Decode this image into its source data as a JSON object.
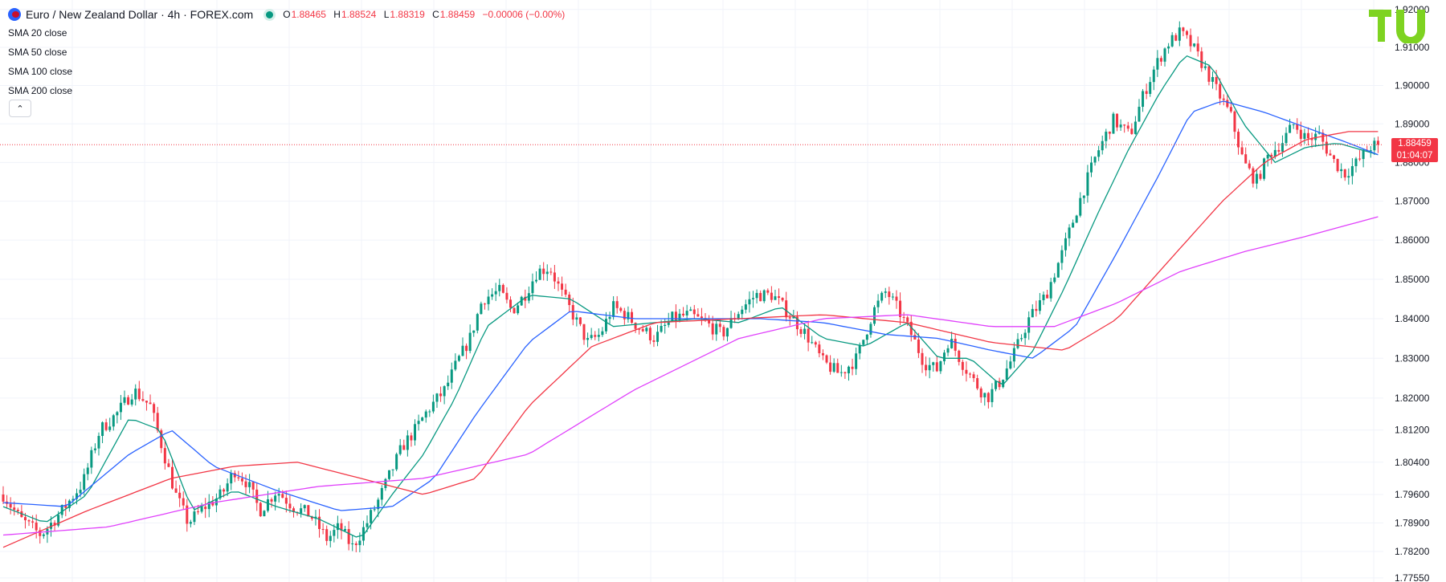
{
  "header": {
    "symbol_title": "Euro / New Zealand Dollar · 4h · FOREX.com",
    "ohlc": [
      {
        "key": "O",
        "value": "1.88465"
      },
      {
        "key": "H",
        "value": "1.88524"
      },
      {
        "key": "L",
        "value": "1.88319"
      },
      {
        "key": "C",
        "value": "1.88459"
      }
    ],
    "change": "−0.00006 (−0.00%)"
  },
  "indicators": [
    {
      "name": "SMA",
      "params": "20 close",
      "color": "#089981"
    },
    {
      "name": "SMA",
      "params": "50 close",
      "color": "#2962ff"
    },
    {
      "name": "SMA",
      "params": "100 close",
      "color": "#f23645"
    },
    {
      "name": "SMA",
      "params": "200 close",
      "color": "#e040fb"
    }
  ],
  "collapse_glyph": "⌃",
  "price_tag": {
    "price": "1.88459",
    "countdown": "01:04:07"
  },
  "colors": {
    "up": "#089981",
    "down": "#f23645",
    "grid": "#f0f3fa",
    "axis_text": "#131722"
  },
  "chart_data": {
    "type": "candlestick",
    "title": "Euro / New Zealand Dollar · 4h · FOREX.com",
    "y_ticks": [
      "1.92000",
      "1.91000",
      "1.90000",
      "1.89000",
      "1.88000",
      "1.87000",
      "1.86000",
      "1.85000",
      "1.84000",
      "1.83000",
      "1.82000",
      "1.81200",
      "1.80400",
      "1.79600",
      "1.78900",
      "1.78200",
      "1.77550"
    ],
    "y_scale": "log",
    "ylim": [
      1.7745,
      1.9225
    ],
    "grid": true,
    "last_price": 1.88459,
    "candle_count": 375,
    "close_path": [
      [
        0,
        1.796
      ],
      [
        8,
        1.79
      ],
      [
        18,
        1.786
      ],
      [
        28,
        1.792
      ],
      [
        38,
        1.799
      ],
      [
        46,
        1.812
      ],
      [
        54,
        1.816
      ],
      [
        62,
        1.822
      ],
      [
        70,
        1.818
      ],
      [
        76,
        1.807
      ],
      [
        82,
        1.796
      ],
      [
        88,
        1.789
      ],
      [
        96,
        1.793
      ],
      [
        104,
        1.796
      ],
      [
        110,
        1.802
      ],
      [
        116,
        1.799
      ],
      [
        122,
        1.792
      ],
      [
        130,
        1.797
      ],
      [
        138,
        1.793
      ],
      [
        146,
        1.791
      ],
      [
        154,
        1.785
      ],
      [
        160,
        1.788
      ],
      [
        166,
        1.783
      ],
      [
        172,
        1.788
      ],
      [
        178,
        1.794
      ],
      [
        184,
        1.801
      ],
      [
        190,
        1.808
      ],
      [
        196,
        1.812
      ],
      [
        202,
        1.817
      ],
      [
        210,
        1.822
      ],
      [
        216,
        1.829
      ],
      [
        222,
        1.835
      ],
      [
        228,
        1.845
      ],
      [
        236,
        1.847
      ],
      [
        242,
        1.842
      ],
      [
        248,
        1.846
      ],
      [
        254,
        1.852
      ],
      [
        260,
        1.853
      ],
      [
        266,
        1.846
      ],
      [
        272,
        1.84
      ],
      [
        278,
        1.834
      ],
      [
        284,
        1.836
      ],
      [
        290,
        1.843
      ],
      [
        296,
        1.841
      ],
      [
        302,
        1.838
      ],
      [
        310,
        1.835
      ],
      [
        318,
        1.84
      ],
      [
        326,
        1.841
      ],
      [
        334,
        1.839
      ],
      [
        342,
        1.836
      ],
      [
        350,
        1.842
      ],
      [
        358,
        1.846
      ],
      [
        366,
        1.846
      ],
      [
        374,
        1.841
      ],
      [
        382,
        1.836
      ],
      [
        390,
        1.829
      ],
      [
        398,
        1.826
      ],
      [
        406,
        1.83
      ],
      [
        414,
        1.842
      ],
      [
        420,
        1.847
      ],
      [
        426,
        1.842
      ],
      [
        432,
        1.836
      ],
      [
        438,
        1.829
      ],
      [
        444,
        1.827
      ],
      [
        450,
        1.835
      ],
      [
        456,
        1.829
      ],
      [
        462,
        1.824
      ],
      [
        468,
        1.82
      ],
      [
        474,
        1.824
      ],
      [
        480,
        1.83
      ],
      [
        488,
        1.84
      ],
      [
        496,
        1.846
      ],
      [
        504,
        1.857
      ],
      [
        512,
        1.87
      ],
      [
        520,
        1.882
      ],
      [
        528,
        1.891
      ],
      [
        536,
        1.887
      ],
      [
        542,
        1.897
      ],
      [
        548,
        1.905
      ],
      [
        554,
        1.911
      ],
      [
        560,
        1.914
      ],
      [
        566,
        1.91
      ],
      [
        572,
        1.904
      ],
      [
        578,
        1.898
      ],
      [
        584,
        1.892
      ],
      [
        590,
        1.88
      ],
      [
        596,
        1.875
      ],
      [
        602,
        1.882
      ],
      [
        608,
        1.885
      ],
      [
        614,
        1.89
      ],
      [
        620,
        1.886
      ],
      [
        626,
        1.887
      ],
      [
        632,
        1.881
      ],
      [
        638,
        1.877
      ],
      [
        644,
        1.88
      ],
      [
        650,
        1.884
      ],
      [
        654,
        1.8846
      ]
    ],
    "sma_path_shape_scale": 654,
    "series": [
      {
        "name": "SMA 20 close",
        "color": "#089981",
        "values": [
          [
            0,
            1.793
          ],
          [
            20,
            1.789
          ],
          [
            40,
            1.796
          ],
          [
            60,
            1.815
          ],
          [
            75,
            1.812
          ],
          [
            90,
            1.792
          ],
          [
            110,
            1.797
          ],
          [
            130,
            1.793
          ],
          [
            150,
            1.79
          ],
          [
            170,
            1.785
          ],
          [
            185,
            1.796
          ],
          [
            200,
            1.806
          ],
          [
            215,
            1.82
          ],
          [
            230,
            1.838
          ],
          [
            250,
            1.846
          ],
          [
            270,
            1.845
          ],
          [
            290,
            1.838
          ],
          [
            310,
            1.839
          ],
          [
            330,
            1.84
          ],
          [
            350,
            1.839
          ],
          [
            370,
            1.843
          ],
          [
            390,
            1.835
          ],
          [
            410,
            1.833
          ],
          [
            430,
            1.839
          ],
          [
            445,
            1.83
          ],
          [
            460,
            1.83
          ],
          [
            475,
            1.823
          ],
          [
            490,
            1.832
          ],
          [
            505,
            1.848
          ],
          [
            520,
            1.866
          ],
          [
            535,
            1.883
          ],
          [
            550,
            1.898
          ],
          [
            562,
            1.908
          ],
          [
            575,
            1.905
          ],
          [
            590,
            1.89
          ],
          [
            605,
            1.88
          ],
          [
            620,
            1.884
          ],
          [
            635,
            1.885
          ],
          [
            654,
            1.882
          ]
        ]
      },
      {
        "name": "SMA 50 close",
        "color": "#2962ff",
        "values": [
          [
            0,
            1.794
          ],
          [
            30,
            1.793
          ],
          [
            60,
            1.806
          ],
          [
            80,
            1.812
          ],
          [
            100,
            1.803
          ],
          [
            130,
            1.797
          ],
          [
            160,
            1.792
          ],
          [
            185,
            1.793
          ],
          [
            205,
            1.8
          ],
          [
            225,
            1.816
          ],
          [
            250,
            1.834
          ],
          [
            270,
            1.842
          ],
          [
            300,
            1.84
          ],
          [
            330,
            1.84
          ],
          [
            360,
            1.84
          ],
          [
            390,
            1.839
          ],
          [
            420,
            1.836
          ],
          [
            445,
            1.835
          ],
          [
            470,
            1.832
          ],
          [
            490,
            1.83
          ],
          [
            510,
            1.838
          ],
          [
            530,
            1.857
          ],
          [
            550,
            1.877
          ],
          [
            565,
            1.893
          ],
          [
            580,
            1.896
          ],
          [
            600,
            1.893
          ],
          [
            620,
            1.889
          ],
          [
            640,
            1.885
          ],
          [
            654,
            1.882
          ]
        ]
      },
      {
        "name": "SMA 100 close",
        "color": "#f23645",
        "values": [
          [
            0,
            1.783
          ],
          [
            40,
            1.792
          ],
          [
            80,
            1.8
          ],
          [
            110,
            1.803
          ],
          [
            140,
            1.804
          ],
          [
            170,
            1.8
          ],
          [
            200,
            1.796
          ],
          [
            225,
            1.8
          ],
          [
            250,
            1.818
          ],
          [
            280,
            1.833
          ],
          [
            310,
            1.839
          ],
          [
            350,
            1.84
          ],
          [
            390,
            1.841
          ],
          [
            430,
            1.839
          ],
          [
            470,
            1.834
          ],
          [
            505,
            1.832
          ],
          [
            530,
            1.84
          ],
          [
            555,
            1.855
          ],
          [
            580,
            1.87
          ],
          [
            600,
            1.88
          ],
          [
            620,
            1.886
          ],
          [
            640,
            1.888
          ],
          [
            654,
            1.888
          ]
        ]
      },
      {
        "name": "SMA 200 close",
        "color": "#e040fb",
        "values": [
          [
            0,
            1.786
          ],
          [
            50,
            1.788
          ],
          [
            100,
            1.794
          ],
          [
            150,
            1.798
          ],
          [
            200,
            1.8
          ],
          [
            250,
            1.806
          ],
          [
            300,
            1.822
          ],
          [
            350,
            1.835
          ],
          [
            390,
            1.84
          ],
          [
            430,
            1.841
          ],
          [
            470,
            1.838
          ],
          [
            500,
            1.838
          ],
          [
            530,
            1.844
          ],
          [
            560,
            1.852
          ],
          [
            590,
            1.857
          ],
          [
            620,
            1.861
          ],
          [
            654,
            1.866
          ]
        ]
      }
    ]
  }
}
